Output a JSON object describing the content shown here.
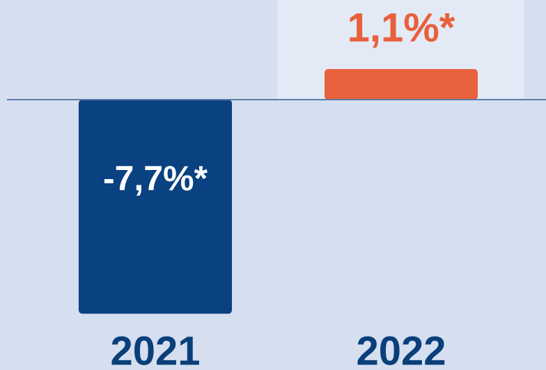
{
  "chart_data": {
    "type": "bar",
    "categories": [
      "2021",
      "2022"
    ],
    "values": [
      -7.7,
      1.1
    ],
    "value_labels": [
      "-7,7%*",
      "1,1%*"
    ],
    "colors": [
      "#0a4180",
      "#e8603c"
    ]
  }
}
